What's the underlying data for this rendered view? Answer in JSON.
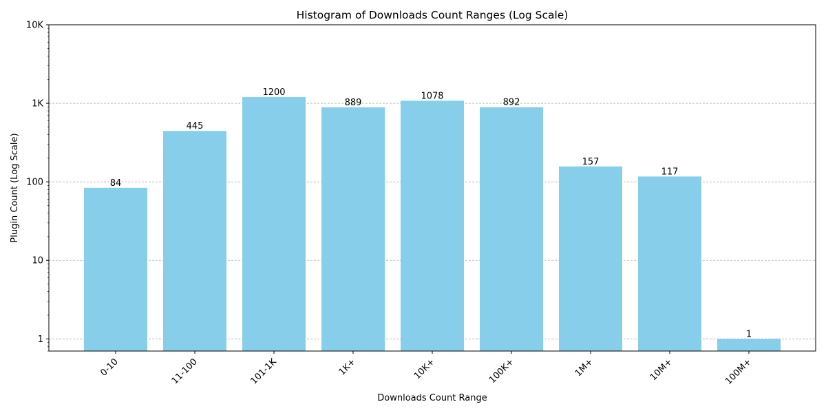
{
  "chart_data": {
    "type": "bar",
    "title": "Histogram of Downloads Count Ranges (Log Scale)",
    "xlabel": "Downloads Count Range",
    "ylabel": "Plugin Count (Log Scale)",
    "yscale": "log",
    "ylim": [
      0.7,
      10000
    ],
    "grid": "y-major-dashed",
    "bar_color": "#87CEEB",
    "categories": [
      "0-10",
      "11-100",
      "101-1K",
      "1K+",
      "10K+",
      "100K+",
      "1M+",
      "10M+",
      "100M+"
    ],
    "values": [
      84,
      445,
      1200,
      889,
      1078,
      892,
      157,
      117,
      1
    ],
    "data_labels": [
      "84",
      "445",
      "1200",
      "889",
      "1078",
      "892",
      "157",
      "117",
      "1"
    ],
    "y_ticks": [
      {
        "value": 1,
        "label": "1"
      },
      {
        "value": 10,
        "label": "10"
      },
      {
        "value": 100,
        "label": "100"
      },
      {
        "value": 1000,
        "label": "1K"
      },
      {
        "value": 10000,
        "label": "10K"
      }
    ]
  }
}
